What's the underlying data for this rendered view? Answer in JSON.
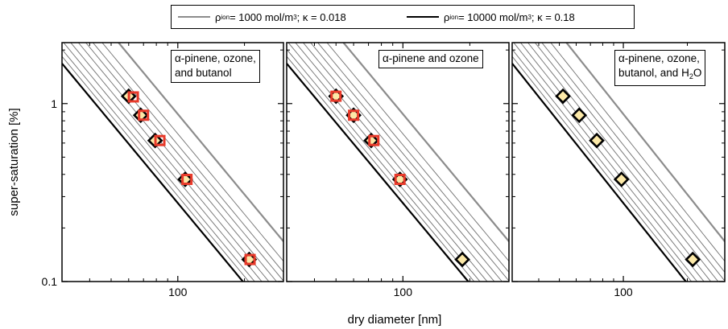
{
  "chart_data": {
    "type": "scatter",
    "xlabel": "dry diameter [nm]",
    "ylabel": "super-saturation [%]",
    "xscale": "log",
    "yscale": "log",
    "xlim": [
      30,
      300
    ],
    "ylim": [
      0.1,
      2.2
    ],
    "x_ticks": [
      {
        "value": 100,
        "label": "100"
      }
    ],
    "y_ticks": [
      {
        "value": 1,
        "label": "1"
      },
      {
        "value": 0.1,
        "label": "0.1"
      }
    ],
    "legend": {
      "placement": "top",
      "entries": [
        {
          "rho_text": "ρ",
          "rho_sub": "ion",
          "rho_value": " = 1000 mol/m",
          "sup": "3",
          "kappa": "; κ = 0.018",
          "color": "#8c8c8c"
        },
        {
          "rho_text": "ρ",
          "rho_sub": "ion",
          "rho_value": " = 10000 mol/m",
          "sup": "3",
          "kappa": "; κ = 0.18",
          "color": "#000000"
        }
      ]
    },
    "reference_lines": {
      "kappa_low": 0.018,
      "kappa_high": 0.18,
      "intermediate_kappas": [
        0.03,
        0.04,
        0.05,
        0.063,
        0.08,
        0.1,
        0.125,
        0.15
      ],
      "colors": {
        "low": "#8c8c8c",
        "high": "#000000",
        "intermediate": "#707070"
      }
    },
    "panels": [
      {
        "label_lines": [
          "α-pinene, ozone,",
          "and butanol"
        ],
        "series": [
          {
            "marker": "diamond",
            "fill": "#fce9a8",
            "stroke": "#000000",
            "points": [
              [
                60,
                1.1
              ],
              [
                68,
                0.86
              ],
              [
                79,
                0.62
              ],
              [
                108,
                0.375
              ],
              [
                210,
                0.133
              ]
            ]
          },
          {
            "marker": "square",
            "fill": "#e83a2a",
            "stroke": "#e83a2a",
            "points": [
              [
                63,
                1.09
              ],
              [
                70,
                0.86
              ],
              [
                83,
                0.62
              ],
              [
                110,
                0.375
              ],
              [
                212,
                0.133
              ]
            ]
          }
        ]
      },
      {
        "label_lines": [
          "α-pinene and ozone"
        ],
        "series": [
          {
            "marker": "diamond",
            "fill": "#fce9a8",
            "stroke": "#000000",
            "points": [
              [
                50,
                1.1
              ],
              [
                60,
                0.86
              ],
              [
                72,
                0.62
              ],
              [
                97,
                0.375
              ],
              [
                185,
                0.133
              ]
            ]
          },
          {
            "marker": "square",
            "fill": "#e83a2a",
            "stroke": "#e83a2a",
            "points": [
              [
                50,
                1.1
              ],
              [
                60,
                0.86
              ],
              [
                74,
                0.62
              ],
              [
                97,
                0.375
              ]
            ]
          }
        ]
      },
      {
        "label_lines": [
          "α-pinene, ozone,",
          "butanol, and H",
          "2",
          "O"
        ],
        "series": [
          {
            "marker": "diamond",
            "fill": "#fce9a8",
            "stroke": "#000000",
            "points": [
              [
                52,
                1.1
              ],
              [
                62,
                0.86
              ],
              [
                75,
                0.62
              ],
              [
                98,
                0.375
              ],
              [
                212,
                0.133
              ]
            ]
          }
        ]
      }
    ]
  }
}
